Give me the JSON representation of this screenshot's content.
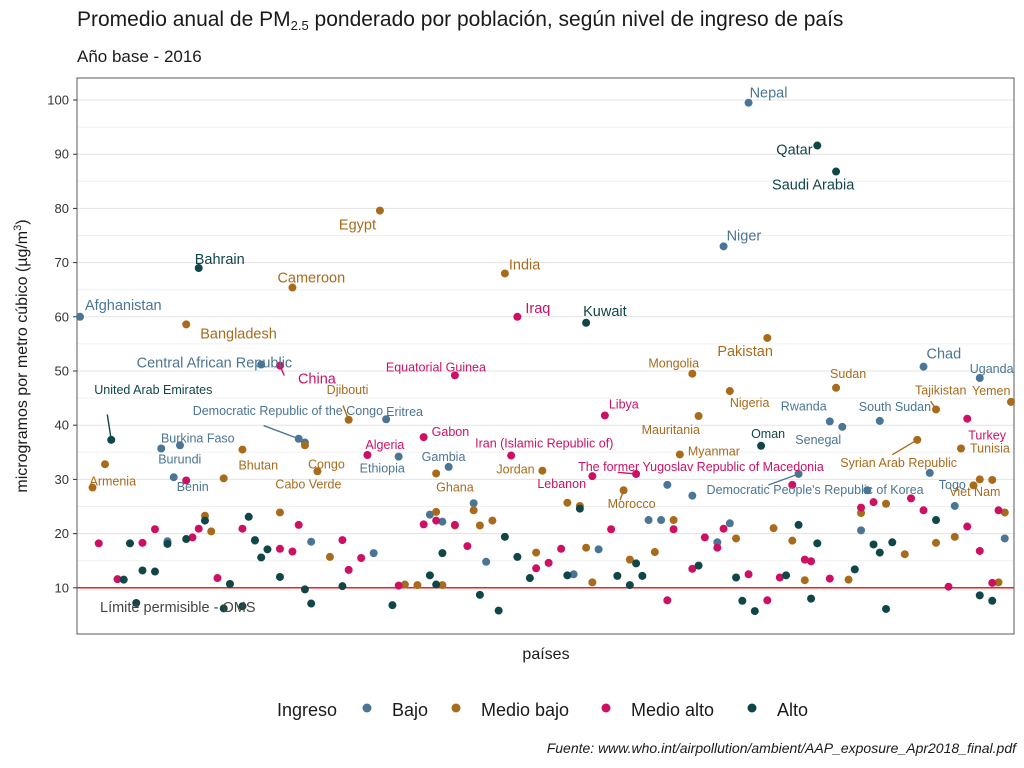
{
  "title_parts": [
    "Promedio anual de PM",
    "2.5",
    " ponderado por población, según nivel de ingreso de país"
  ],
  "subtitle": "Año base - 2016",
  "source": "Fuente: www.who.int/airpollution/ambient/AAP_exposure_Apr2018_final.pdf",
  "colors": {
    "Bajo": "#4a7595",
    "Medio bajo": "#a86b1c",
    "Medio alto": "#cc1164",
    "Alto": "#104648",
    "limit_line": "#ff1a1a"
  },
  "chart_data": {
    "type": "scatter",
    "title": "Promedio anual de PM2.5 ponderado por población, según nivel de ingreso de país",
    "subtitle": "Año base - 2016",
    "xlabel": "países",
    "ylabel": "microgramos por metro cúbico (µg/m³)",
    "ylim": [
      3,
      103
    ],
    "yticks": [
      10,
      20,
      30,
      40,
      50,
      60,
      70,
      80,
      90,
      100
    ],
    "grid": true,
    "reference_line": {
      "value": 10,
      "label": "Límite permisible - OMS"
    },
    "legend": {
      "title": "Ingreso",
      "placement": "bottom",
      "entries": [
        "Bajo",
        "Medio bajo",
        "Medio alto",
        "Alto"
      ]
    },
    "labeled_points": [
      {
        "country": "Afghanistan",
        "group": "Bajo",
        "x": 1,
        "y": 60
      },
      {
        "country": "Armenia",
        "group": "Medio bajo",
        "x": 3,
        "y": 28.5
      },
      {
        "country": "United Arab Emirates",
        "group": "Alto",
        "x": 6,
        "y": 37.3
      },
      {
        "country": "Benin",
        "group": "Bajo",
        "x": 16,
        "y": 30.4
      },
      {
        "country": "Burundi",
        "group": "Bajo",
        "x": 14,
        "y": 35.7
      },
      {
        "country": "Burkina Faso",
        "group": "Bajo",
        "x": 17,
        "y": 36.3
      },
      {
        "country": "Bangladesh",
        "group": "Medio bajo",
        "x": 18,
        "y": 58.6
      },
      {
        "country": "Bahrain",
        "group": "Alto",
        "x": 20,
        "y": 69
      },
      {
        "country": "Bhutan",
        "group": "Medio bajo",
        "x": 27,
        "y": 35.5
      },
      {
        "country": "Central African Republic",
        "group": "Bajo",
        "x": 30,
        "y": 51.2
      },
      {
        "country": "China",
        "group": "Medio alto",
        "x": 33,
        "y": 51
      },
      {
        "country": "Cameroon",
        "group": "Medio bajo",
        "x": 35,
        "y": 65.4
      },
      {
        "country": "Democratic Republic of the Congo",
        "group": "Bajo",
        "x": 36,
        "y": 37.5
      },
      {
        "country": "Congo",
        "group": "Medio bajo",
        "x": 37,
        "y": 36.3
      },
      {
        "country": "Cabo Verde",
        "group": "Medio bajo",
        "x": 39,
        "y": 31.5
      },
      {
        "country": "Djibouti",
        "group": "Medio bajo",
        "x": 44,
        "y": 41
      },
      {
        "country": "Algeria",
        "group": "Medio alto",
        "x": 47,
        "y": 34.5
      },
      {
        "country": "Egypt",
        "group": "Medio bajo",
        "x": 49,
        "y": 79.6
      },
      {
        "country": "Eritrea",
        "group": "Bajo",
        "x": 50,
        "y": 41.1
      },
      {
        "country": "Ethiopia",
        "group": "Bajo",
        "x": 52,
        "y": 34.2
      },
      {
        "country": "Gabon",
        "group": "Medio alto",
        "x": 56,
        "y": 37.8
      },
      {
        "country": "Ghana",
        "group": "Medio bajo",
        "x": 58,
        "y": 31.1
      },
      {
        "country": "Gambia",
        "group": "Bajo",
        "x": 60,
        "y": 32.3
      },
      {
        "country": "Equatorial Guinea",
        "group": "Medio alto",
        "x": 61,
        "y": 49.2
      },
      {
        "country": "India",
        "group": "Medio bajo",
        "x": 69,
        "y": 68
      },
      {
        "country": "Iran (Islamic Republic of)",
        "group": "Medio alto",
        "x": 70,
        "y": 34.4
      },
      {
        "country": "Iraq",
        "group": "Medio alto",
        "x": 71,
        "y": 60
      },
      {
        "country": "Jordan",
        "group": "Medio bajo",
        "x": 75,
        "y": 31.6
      },
      {
        "country": "Kuwait",
        "group": "Alto",
        "x": 82,
        "y": 58.9
      },
      {
        "country": "Lebanon",
        "group": "Medio alto",
        "x": 83,
        "y": 30.6
      },
      {
        "country": "Libya",
        "group": "Medio alto",
        "x": 85,
        "y": 41.8
      },
      {
        "country": "Morocco",
        "group": "Medio bajo",
        "x": 88,
        "y": 28
      },
      {
        "country": "The former Yugoslav Republic of Macedonia",
        "group": "Medio alto",
        "x": 90,
        "y": 31
      },
      {
        "country": "Mongolia",
        "group": "Medio bajo",
        "x": 99,
        "y": 49.5
      },
      {
        "country": "Mauritania",
        "group": "Medio bajo",
        "x": 100,
        "y": 41.7
      },
      {
        "country": "Myanmar",
        "group": "Medio bajo",
        "x": 97,
        "y": 34.6
      },
      {
        "country": "Niger",
        "group": "Bajo",
        "x": 104,
        "y": 73
      },
      {
        "country": "Nigeria",
        "group": "Medio bajo",
        "x": 105,
        "y": 46.3
      },
      {
        "country": "Nepal",
        "group": "Bajo",
        "x": 108,
        "y": 99.5
      },
      {
        "country": "Oman",
        "group": "Alto",
        "x": 110,
        "y": 36.2
      },
      {
        "country": "Pakistan",
        "group": "Medio bajo",
        "x": 111,
        "y": 56.1
      },
      {
        "country": "Democratic People's Republic of Korea",
        "group": "Bajo",
        "x": 116,
        "y": 31
      },
      {
        "country": "Qatar",
        "group": "Alto",
        "x": 119,
        "y": 91.6
      },
      {
        "country": "Rwanda",
        "group": "Bajo",
        "x": 121,
        "y": 40.7
      },
      {
        "country": "Saudi Arabia",
        "group": "Alto",
        "x": 122,
        "y": 86.8
      },
      {
        "country": "Sudan",
        "group": "Medio bajo",
        "x": 122,
        "y": 46.9
      },
      {
        "country": "Senegal",
        "group": "Bajo",
        "x": 123,
        "y": 39.7
      },
      {
        "country": "South Sudan",
        "group": "Bajo",
        "x": 129,
        "y": 40.8
      },
      {
        "country": "Syrian Arab Republic",
        "group": "Medio bajo",
        "x": 135,
        "y": 37.3
      },
      {
        "country": "Chad",
        "group": "Bajo",
        "x": 136,
        "y": 50.8
      },
      {
        "country": "Togo",
        "group": "Bajo",
        "x": 137,
        "y": 31.2
      },
      {
        "country": "Tajikistan",
        "group": "Medio bajo",
        "x": 138,
        "y": 42.9
      },
      {
        "country": "Tunisia",
        "group": "Medio bajo",
        "x": 142,
        "y": 35.7
      },
      {
        "country": "Turkey",
        "group": "Medio alto",
        "x": 143,
        "y": 41.2
      },
      {
        "country": "Uganda",
        "group": "Bajo",
        "x": 145,
        "y": 48.7
      },
      {
        "country": "Yemen",
        "group": "Medio bajo",
        "x": 150,
        "y": 44.3
      },
      {
        "country": "Viet Nam",
        "group": "Medio bajo",
        "x": 147,
        "y": 29.9
      }
    ],
    "other_points": {
      "Bajo": [
        [
          15,
          18.6
        ],
        [
          29,
          18.7
        ],
        [
          37,
          36.8
        ],
        [
          38,
          18.5
        ],
        [
          48,
          16.4
        ],
        [
          57,
          23.5
        ],
        [
          59,
          22.2
        ],
        [
          64,
          25.6
        ],
        [
          66,
          14.8
        ],
        [
          80,
          12.5
        ],
        [
          84,
          17.1
        ],
        [
          92,
          22.5
        ],
        [
          94,
          22.5
        ],
        [
          95,
          29
        ],
        [
          99,
          27
        ],
        [
          103,
          18.4
        ],
        [
          105,
          21.9
        ],
        [
          126,
          20.6
        ],
        [
          127,
          28
        ],
        [
          141,
          25.1
        ],
        [
          149,
          19.1
        ]
      ],
      "Medio bajo": [
        [
          5,
          32.8
        ],
        [
          21,
          23.3
        ],
        [
          22,
          20.4
        ],
        [
          24,
          30.2
        ],
        [
          33,
          23.9
        ],
        [
          41,
          15.7
        ],
        [
          53,
          10.6
        ],
        [
          55,
          10.5
        ],
        [
          58,
          24
        ],
        [
          59,
          10.5
        ],
        [
          61,
          21.5
        ],
        [
          64,
          24.3
        ],
        [
          65,
          21.5
        ],
        [
          67,
          22.4
        ],
        [
          74,
          16.5
        ],
        [
          79,
          25.7
        ],
        [
          81,
          25.1
        ],
        [
          82,
          17.4
        ],
        [
          83,
          11
        ],
        [
          89,
          15.2
        ],
        [
          93,
          16.6
        ],
        [
          96,
          22.5
        ],
        [
          106,
          19.1
        ],
        [
          112,
          21
        ],
        [
          115,
          18.7
        ],
        [
          117,
          11.4
        ],
        [
          124,
          11.5
        ],
        [
          126,
          23.8
        ],
        [
          130,
          25.5
        ],
        [
          133,
          16.2
        ],
        [
          138,
          18.3
        ],
        [
          141,
          19.4
        ],
        [
          144,
          28.9
        ],
        [
          145,
          30
        ],
        [
          148,
          11
        ],
        [
          149,
          23.9
        ]
      ],
      "Medio alto": [
        [
          4,
          18.2
        ],
        [
          7,
          11.6
        ],
        [
          11,
          18.3
        ],
        [
          13,
          20.8
        ],
        [
          18,
          29.8
        ],
        [
          19,
          19.3
        ],
        [
          20,
          20.9
        ],
        [
          23,
          11.8
        ],
        [
          27,
          20.9
        ],
        [
          33,
          17.2
        ],
        [
          35,
          16.7
        ],
        [
          36,
          21.6
        ],
        [
          43,
          18.8
        ],
        [
          44,
          13.3
        ],
        [
          46,
          15.5
        ],
        [
          52,
          10.4
        ],
        [
          56,
          21.7
        ],
        [
          58,
          22.4
        ],
        [
          61,
          21.6
        ],
        [
          63,
          17.7
        ],
        [
          74,
          13.6
        ],
        [
          76,
          14.6
        ],
        [
          78,
          17.2
        ],
        [
          86,
          20.8
        ],
        [
          95,
          7.7
        ],
        [
          96,
          20.8
        ],
        [
          99,
          13.5
        ],
        [
          101,
          19.3
        ],
        [
          103,
          17.4
        ],
        [
          104,
          20.9
        ],
        [
          108,
          12.5
        ],
        [
          111,
          7.7
        ],
        [
          113,
          11.9
        ],
        [
          115,
          29
        ],
        [
          117,
          15.2
        ],
        [
          118,
          14.9
        ],
        [
          121,
          11.7
        ],
        [
          126,
          24.8
        ],
        [
          128,
          25.8
        ],
        [
          134,
          26.5
        ],
        [
          136,
          24.3
        ],
        [
          140,
          10.2
        ],
        [
          143,
          21.3
        ],
        [
          145,
          16.8
        ],
        [
          147,
          10.9
        ],
        [
          148,
          24.3
        ]
      ],
      "Alto": [
        [
          8,
          11.5
        ],
        [
          9,
          18.2
        ],
        [
          10,
          7.2
        ],
        [
          11,
          13.2
        ],
        [
          13,
          13
        ],
        [
          15,
          18.1
        ],
        [
          18,
          19
        ],
        [
          21,
          22.4
        ],
        [
          24,
          6.2
        ],
        [
          25,
          10.7
        ],
        [
          27,
          6.6
        ],
        [
          28,
          23.1
        ],
        [
          29,
          18.8
        ],
        [
          30,
          15.6
        ],
        [
          31,
          17.1
        ],
        [
          33,
          12
        ],
        [
          37,
          9.7
        ],
        [
          38,
          7.1
        ],
        [
          43,
          10.3
        ],
        [
          51,
          6.8
        ],
        [
          57,
          12.3
        ],
        [
          58,
          10.6
        ],
        [
          59,
          16.4
        ],
        [
          65,
          8.7
        ],
        [
          68,
          5.8
        ],
        [
          69,
          19.4
        ],
        [
          71,
          15.7
        ],
        [
          73,
          11.8
        ],
        [
          79,
          12.3
        ],
        [
          81,
          24.6
        ],
        [
          87,
          12.2
        ],
        [
          89,
          10.5
        ],
        [
          90,
          14.5
        ],
        [
          91,
          12.2
        ],
        [
          100,
          14.1
        ],
        [
          106,
          11.9
        ],
        [
          107,
          7.6
        ],
        [
          109,
          5.7
        ],
        [
          114,
          12.3
        ],
        [
          116,
          21.6
        ],
        [
          118,
          8
        ],
        [
          119,
          18.2
        ],
        [
          125,
          13.4
        ],
        [
          128,
          18
        ],
        [
          129,
          16.5
        ],
        [
          130,
          6.1
        ],
        [
          131,
          18.4
        ],
        [
          138,
          22.5
        ],
        [
          145,
          8.6
        ],
        [
          147,
          7.6
        ]
      ]
    }
  }
}
